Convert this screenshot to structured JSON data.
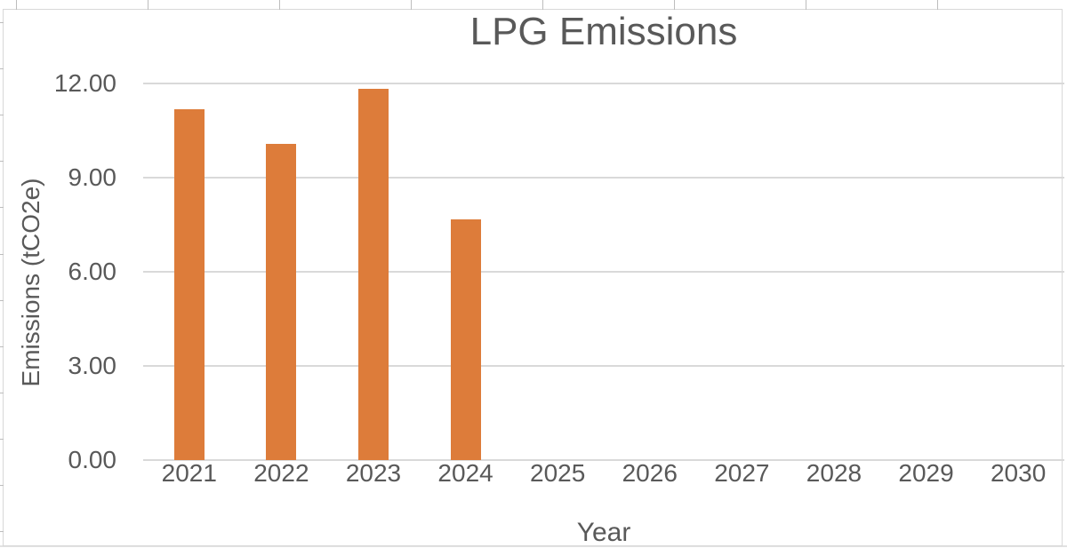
{
  "chart_data": {
    "type": "bar",
    "title": "LPG Emissions",
    "xlabel": "Year",
    "ylabel": "Emissions (tCO2e)",
    "categories": [
      "2021",
      "2022",
      "2023",
      "2024",
      "2025",
      "2026",
      "2027",
      "2028",
      "2029",
      "2030"
    ],
    "values": [
      11.18,
      10.07,
      11.83,
      7.67,
      null,
      null,
      null,
      null,
      null,
      null
    ],
    "ylim": [
      0,
      12
    ],
    "yticks": [
      0,
      3,
      6,
      9,
      12
    ],
    "ytick_labels": [
      "0.00",
      "3.00",
      "6.00",
      "9.00",
      "12.00"
    ],
    "grid": true,
    "legend_position": "none",
    "colors": {
      "bar": "#DD7C3A",
      "text": "#595959",
      "grid": "#D9D9D9",
      "frame_border": "#D8D8D8",
      "background": "#FFFFFF"
    }
  }
}
